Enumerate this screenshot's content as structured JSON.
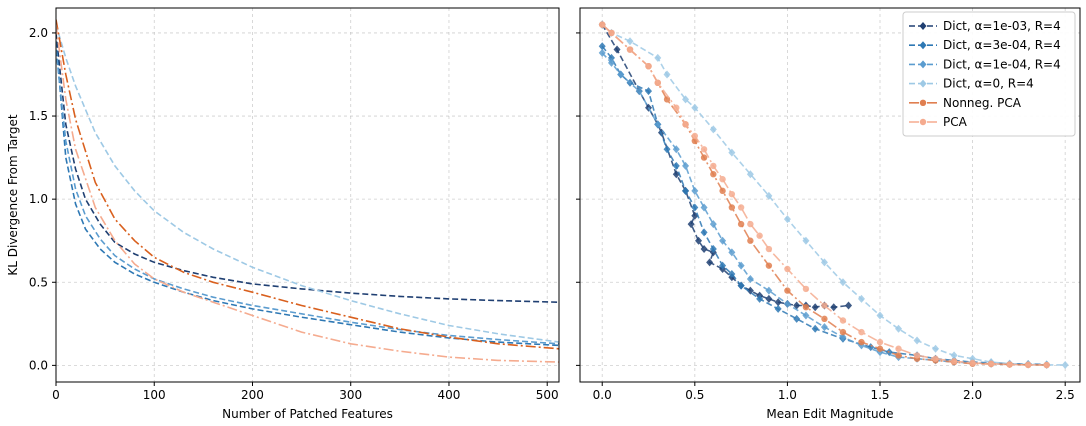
{
  "chart_data": [
    {
      "type": "line",
      "title": "",
      "xlabel": "Number of Patched Features",
      "ylabel": "KL Divergence From Target",
      "xlim": [
        0,
        512
      ],
      "ylim": [
        -0.1,
        2.15
      ],
      "xticks": [
        0,
        100,
        200,
        300,
        400,
        500
      ],
      "xtick_labels": [
        "0",
        "100",
        "200",
        "300",
        "400",
        "500"
      ],
      "yticks": [
        0.0,
        0.5,
        1.0,
        1.5,
        2.0
      ],
      "ytick_labels": [
        "0.0",
        "0.5",
        "1.0",
        "1.5",
        "2.0"
      ],
      "grid": true,
      "series": [
        {
          "name": "Dict, α=1e-03, R=4",
          "color": "#1f3f72",
          "dash": "dashed",
          "x": [
            0,
            10,
            20,
            30,
            45,
            60,
            80,
            100,
            130,
            160,
            200,
            250,
            300,
            350,
            400,
            450,
            512
          ],
          "y": [
            2.0,
            1.45,
            1.18,
            1.0,
            0.85,
            0.74,
            0.67,
            0.62,
            0.57,
            0.53,
            0.49,
            0.46,
            0.435,
            0.415,
            0.4,
            0.39,
            0.38
          ]
        },
        {
          "name": "Dict, α=3e-04, R=4",
          "color": "#2e78b4",
          "dash": "dashed",
          "x": [
            0,
            10,
            20,
            30,
            45,
            60,
            80,
            100,
            130,
            160,
            200,
            250,
            300,
            350,
            400,
            450,
            512
          ],
          "y": [
            1.95,
            1.25,
            0.97,
            0.82,
            0.7,
            0.62,
            0.55,
            0.5,
            0.44,
            0.39,
            0.34,
            0.29,
            0.245,
            0.2,
            0.165,
            0.14,
            0.12
          ]
        },
        {
          "name": "Dict, α=1e-04, R=4",
          "color": "#5b9ccf",
          "dash": "dashed",
          "x": [
            0,
            10,
            20,
            30,
            45,
            60,
            80,
            100,
            130,
            160,
            200,
            250,
            300,
            350,
            400,
            450,
            512
          ],
          "y": [
            1.9,
            1.35,
            1.06,
            0.9,
            0.76,
            0.66,
            0.58,
            0.52,
            0.46,
            0.41,
            0.36,
            0.31,
            0.26,
            0.215,
            0.18,
            0.155,
            0.13
          ]
        },
        {
          "name": "Dict, α=0, R=4",
          "color": "#9ec9e5",
          "dash": "dashed",
          "x": [
            0,
            10,
            20,
            40,
            60,
            80,
            100,
            130,
            160,
            200,
            250,
            300,
            350,
            400,
            450,
            512
          ],
          "y": [
            2.05,
            1.85,
            1.68,
            1.4,
            1.2,
            1.05,
            0.93,
            0.8,
            0.7,
            0.59,
            0.48,
            0.39,
            0.31,
            0.24,
            0.19,
            0.14
          ]
        },
        {
          "name": "Nonneg. PCA",
          "color": "#d9601e",
          "dash": "dashdot",
          "x": [
            0,
            10,
            20,
            40,
            60,
            80,
            100,
            130,
            160,
            200,
            250,
            300,
            350,
            400,
            450,
            512
          ],
          "y": [
            2.08,
            1.75,
            1.48,
            1.1,
            0.88,
            0.75,
            0.65,
            0.56,
            0.5,
            0.44,
            0.36,
            0.29,
            0.22,
            0.17,
            0.13,
            0.1
          ]
        },
        {
          "name": "PCA",
          "color": "#f5ab8f",
          "dash": "dashdot",
          "x": [
            0,
            10,
            20,
            40,
            60,
            80,
            100,
            130,
            160,
            200,
            250,
            300,
            350,
            400,
            450,
            512
          ],
          "y": [
            2.05,
            1.6,
            1.3,
            0.95,
            0.75,
            0.61,
            0.52,
            0.44,
            0.38,
            0.3,
            0.2,
            0.13,
            0.085,
            0.05,
            0.03,
            0.02
          ]
        }
      ]
    },
    {
      "type": "line",
      "title": "",
      "xlabel": "Mean Edit Magnitude",
      "ylabel": "",
      "xlim": [
        -0.12,
        2.58
      ],
      "ylim": [
        -0.1,
        2.15
      ],
      "xticks": [
        0.0,
        0.5,
        1.0,
        1.5,
        2.0,
        2.5
      ],
      "xtick_labels": [
        "0.0",
        "0.5",
        "1.0",
        "1.5",
        "2.0",
        "2.5"
      ],
      "yticks": [
        0.0,
        0.5,
        1.0,
        1.5,
        2.0
      ],
      "ytick_labels": [],
      "grid": true,
      "legend": {
        "location": "top-right",
        "entries": [
          "Dict, α=1e-03, R=4",
          "Dict, α=3e-04, R=4",
          "Dict, α=1e-04, R=4",
          "Dict, α=0, R=4",
          "Nonneg. PCA",
          "PCA"
        ]
      },
      "series": [
        {
          "name": "Dict, α=1e-03, R=4",
          "color": "#1f3f72",
          "marker": "diamond",
          "dash": "dashed",
          "x": [
            0.0,
            0.08,
            0.2,
            0.25,
            0.3,
            0.32,
            0.4,
            0.45,
            0.5,
            0.48,
            0.52,
            0.55,
            0.6,
            0.58,
            0.65,
            0.7,
            0.75,
            0.8,
            0.85,
            0.9,
            0.95,
            1.0,
            1.05,
            1.1,
            1.15,
            1.2,
            1.25,
            1.33
          ],
          "y": [
            2.05,
            1.9,
            1.65,
            1.55,
            1.45,
            1.4,
            1.15,
            1.05,
            0.9,
            0.85,
            0.75,
            0.7,
            0.68,
            0.62,
            0.58,
            0.53,
            0.48,
            0.45,
            0.42,
            0.4,
            0.38,
            0.37,
            0.36,
            0.36,
            0.35,
            0.36,
            0.35,
            0.36
          ]
        },
        {
          "name": "Dict, α=3e-04, R=4",
          "color": "#2e78b4",
          "marker": "diamond",
          "dash": "dashed",
          "x": [
            0.0,
            0.05,
            0.1,
            0.15,
            0.25,
            0.3,
            0.35,
            0.4,
            0.45,
            0.5,
            0.55,
            0.6,
            0.65,
            0.7,
            0.75,
            0.85,
            0.95,
            1.05,
            1.15,
            1.3,
            1.45,
            1.55,
            1.7,
            1.8,
            1.9,
            2.0,
            2.1,
            2.2,
            2.3,
            2.4
          ],
          "y": [
            1.92,
            1.85,
            1.75,
            1.7,
            1.65,
            1.45,
            1.3,
            1.2,
            1.05,
            0.95,
            0.8,
            0.7,
            0.6,
            0.55,
            0.48,
            0.4,
            0.34,
            0.28,
            0.22,
            0.16,
            0.11,
            0.08,
            0.06,
            0.04,
            0.03,
            0.02,
            0.015,
            0.01,
            0.008,
            0.005
          ]
        },
        {
          "name": "Dict, α=1e-04, R=4",
          "color": "#5b9ccf",
          "marker": "diamond",
          "dash": "dashed",
          "x": [
            0.0,
            0.05,
            0.1,
            0.2,
            0.3,
            0.4,
            0.45,
            0.5,
            0.55,
            0.6,
            0.65,
            0.7,
            0.75,
            0.8,
            0.9,
            1.0,
            1.1,
            1.2,
            1.3,
            1.4,
            1.5,
            1.6,
            1.7,
            1.8,
            1.9,
            2.0,
            2.1,
            2.2,
            2.3,
            2.4
          ],
          "y": [
            1.88,
            1.82,
            1.75,
            1.65,
            1.45,
            1.3,
            1.2,
            1.05,
            0.95,
            0.85,
            0.75,
            0.68,
            0.6,
            0.52,
            0.45,
            0.37,
            0.3,
            0.23,
            0.17,
            0.12,
            0.08,
            0.05,
            0.04,
            0.03,
            0.02,
            0.015,
            0.01,
            0.008,
            0.005,
            0.003
          ]
        },
        {
          "name": "Dict, α=0, R=4",
          "color": "#9ec9e5",
          "marker": "diamond",
          "dash": "dashed",
          "x": [
            0.0,
            0.05,
            0.15,
            0.3,
            0.35,
            0.45,
            0.5,
            0.6,
            0.7,
            0.8,
            0.9,
            1.0,
            1.1,
            1.2,
            1.3,
            1.4,
            1.5,
            1.6,
            1.7,
            1.8,
            1.9,
            2.0,
            2.1,
            2.2,
            2.3,
            2.4,
            2.5
          ],
          "y": [
            2.05,
            2.0,
            1.95,
            1.85,
            1.75,
            1.6,
            1.55,
            1.42,
            1.28,
            1.15,
            1.02,
            0.88,
            0.75,
            0.62,
            0.5,
            0.4,
            0.3,
            0.22,
            0.15,
            0.1,
            0.06,
            0.04,
            0.02,
            0.01,
            0.005,
            0.003,
            0.002
          ]
        },
        {
          "name": "Nonneg. PCA",
          "color": "#e07f50",
          "marker": "circle",
          "dash": "dashdot",
          "x": [
            0.0,
            0.05,
            0.15,
            0.25,
            0.3,
            0.35,
            0.45,
            0.5,
            0.55,
            0.6,
            0.65,
            0.7,
            0.75,
            0.8,
            0.9,
            1.0,
            1.1,
            1.2,
            1.3,
            1.4,
            1.5,
            1.6,
            1.7,
            1.8,
            1.9,
            2.0,
            2.1,
            2.2,
            2.3,
            2.4
          ],
          "y": [
            2.05,
            2.0,
            1.9,
            1.8,
            1.7,
            1.6,
            1.45,
            1.35,
            1.25,
            1.15,
            1.05,
            0.95,
            0.85,
            0.75,
            0.6,
            0.45,
            0.35,
            0.28,
            0.2,
            0.14,
            0.1,
            0.06,
            0.04,
            0.03,
            0.02,
            0.01,
            0.008,
            0.005,
            0.003,
            0.002
          ]
        },
        {
          "name": "PCA",
          "color": "#f5ab8f",
          "marker": "circle",
          "dash": "dashdot",
          "x": [
            0.0,
            0.05,
            0.15,
            0.25,
            0.3,
            0.4,
            0.45,
            0.5,
            0.55,
            0.6,
            0.65,
            0.7,
            0.75,
            0.8,
            0.85,
            0.9,
            1.0,
            1.1,
            1.2,
            1.3,
            1.4,
            1.5,
            1.6,
            1.7,
            1.8,
            1.9,
            2.0,
            2.1,
            2.2,
            2.3,
            2.4
          ],
          "y": [
            2.05,
            2.0,
            1.9,
            1.8,
            1.7,
            1.55,
            1.45,
            1.38,
            1.3,
            1.2,
            1.12,
            1.03,
            0.95,
            0.85,
            0.78,
            0.7,
            0.58,
            0.46,
            0.36,
            0.27,
            0.2,
            0.14,
            0.1,
            0.06,
            0.04,
            0.025,
            0.015,
            0.01,
            0.005,
            0.003,
            0.002
          ]
        }
      ]
    }
  ]
}
